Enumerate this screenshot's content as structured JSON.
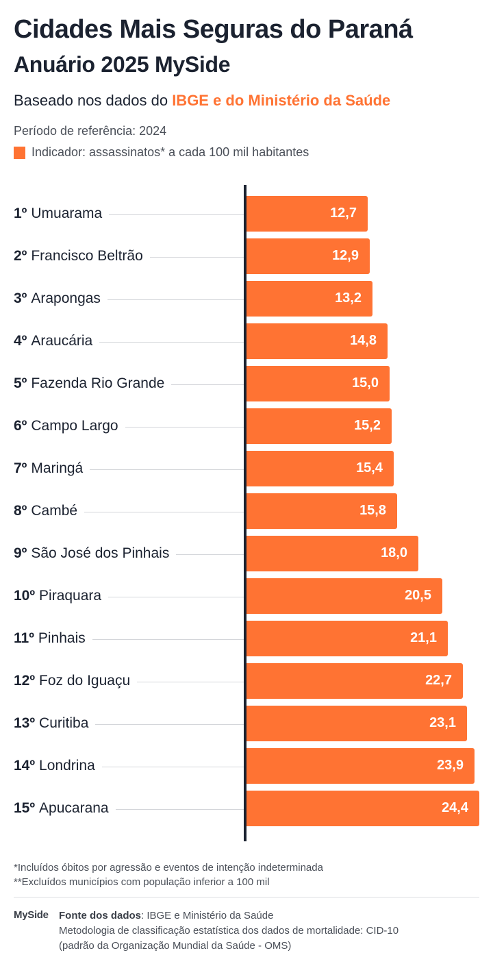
{
  "header": {
    "title": "Cidades Mais Seguras do Paraná",
    "subtitle": "Anuário 2025 MySide",
    "based_prefix": "Baseado nos dados do ",
    "based_highlight": "IBGE e do Ministério da Saúde",
    "period": "Período de referência: 2024",
    "indicator": "Indicador: assassinatos* a cada 100 mil habitantes"
  },
  "colors": {
    "accent": "#ff7333",
    "text": "#1b2230",
    "muted": "#4a4f58",
    "gridline": "#d4d6da"
  },
  "chart_data": {
    "type": "bar",
    "orientation": "horizontal",
    "title": "Cidades Mais Seguras do Paraná",
    "subtitle": "Anuário 2025 MySide",
    "xlabel": "",
    "ylabel": "",
    "legend": [
      "Indicador: assassinatos* a cada 100 mil habitantes"
    ],
    "grid": false,
    "categories": [
      "Umuarama",
      "Francisco Beltrão",
      "Arapongas",
      "Araucária",
      "Fazenda Rio Grande",
      "Campo Largo",
      "Maringá",
      "Cambé",
      "São José dos Pinhais",
      "Piraquara",
      "Pinhais",
      "Foz do Iguaçu",
      "Curitiba",
      "Londrina",
      "Apucarana"
    ],
    "values": [
      12.7,
      12.9,
      13.2,
      14.8,
      15.0,
      15.2,
      15.4,
      15.8,
      18.0,
      20.5,
      21.1,
      22.7,
      23.1,
      23.9,
      24.4
    ],
    "xlim": [
      0,
      24.4
    ]
  },
  "rows": [
    {
      "rank": "1º",
      "city": "Umuarama",
      "value": 12.7,
      "label": "12,7"
    },
    {
      "rank": "2º",
      "city": "Francisco Beltrão",
      "value": 12.9,
      "label": "12,9"
    },
    {
      "rank": "3º",
      "city": "Arapongas",
      "value": 13.2,
      "label": "13,2"
    },
    {
      "rank": "4º",
      "city": "Araucária",
      "value": 14.8,
      "label": "14,8"
    },
    {
      "rank": "5º",
      "city": "Fazenda Rio Grande",
      "value": 15.0,
      "label": "15,0"
    },
    {
      "rank": "6º",
      "city": "Campo Largo",
      "value": 15.2,
      "label": "15,2"
    },
    {
      "rank": "7º",
      "city": "Maringá",
      "value": 15.4,
      "label": "15,4"
    },
    {
      "rank": "8º",
      "city": "Cambé",
      "value": 15.8,
      "label": "15,8"
    },
    {
      "rank": "9º",
      "city": "São José dos Pinhais",
      "value": 18.0,
      "label": "18,0"
    },
    {
      "rank": "10º",
      "city": "Piraquara",
      "value": 20.5,
      "label": "20,5"
    },
    {
      "rank": "11º",
      "city": "Pinhais",
      "value": 21.1,
      "label": "21,1"
    },
    {
      "rank": "12º",
      "city": "Foz do Iguaçu",
      "value": 22.7,
      "label": "22,7"
    },
    {
      "rank": "13º",
      "city": "Curitiba",
      "value": 23.1,
      "label": "23,1"
    },
    {
      "rank": "14º",
      "city": "Londrina",
      "value": 23.9,
      "label": "23,9"
    },
    {
      "rank": "15º",
      "city": "Apucarana",
      "value": 24.4,
      "label": "24,4"
    }
  ],
  "notes": {
    "note1": "*Incluídos óbitos por agressão e eventos de intenção indeterminada",
    "note2": "**Excluídos municípios com população inferior a 100 mil"
  },
  "footer": {
    "logo": "MySide",
    "source_label": "Fonte dos dados",
    "source_value": ": IBGE e Ministério da Saúde",
    "method_line1": "Metodologia de classificação estatística dos dados de mortalidade: CID-10",
    "method_line2": "(padrão da Organização Mundial da Saúde - OMS)"
  }
}
